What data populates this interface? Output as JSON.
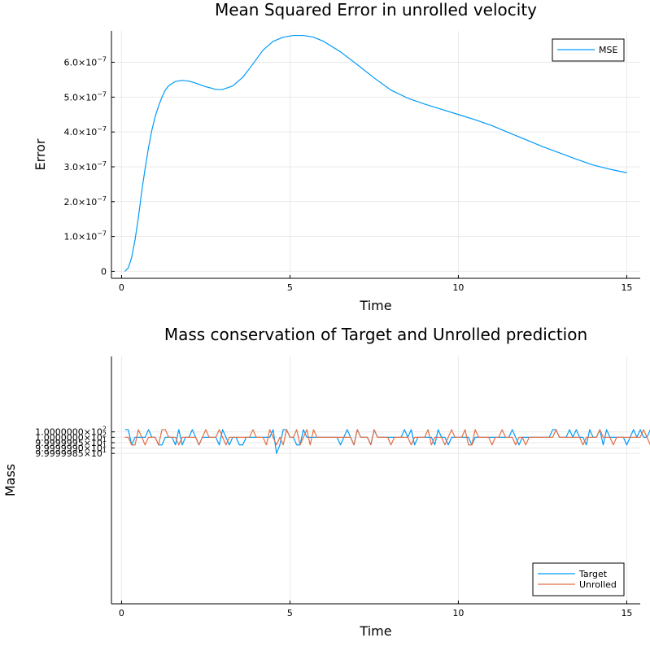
{
  "chart_data": [
    {
      "type": "line",
      "title": "Mean Squared Error in unrolled velocity",
      "xlabel": "Time",
      "ylabel": "Error",
      "xlim": [
        -0.3,
        15.4
      ],
      "ylim": [
        -2e-08,
        6.9e-07
      ],
      "xticks": [
        0,
        5,
        10,
        15
      ],
      "xtick_labels": [
        "0",
        "5",
        "10",
        "15"
      ],
      "yticks": [
        0,
        1e-07,
        2e-07,
        3e-07,
        4e-07,
        5e-07,
        6e-07
      ],
      "ytick_labels": [
        {
          "m": "0",
          "e": ""
        },
        {
          "m": "1.0×10",
          "e": "−7"
        },
        {
          "m": "2.0×10",
          "e": "−7"
        },
        {
          "m": "3.0×10",
          "e": "−7"
        },
        {
          "m": "4.0×10",
          "e": "−7"
        },
        {
          "m": "5.0×10",
          "e": "−7"
        },
        {
          "m": "6.0×10",
          "e": "−7"
        }
      ],
      "grid": true,
      "legend_position": "top-right",
      "series": [
        {
          "name": "MSE",
          "color": "#009AFA",
          "x": [
            0.1,
            0.2,
            0.3,
            0.4,
            0.5,
            0.6,
            0.7,
            0.8,
            0.9,
            1.0,
            1.1,
            1.2,
            1.3,
            1.4,
            1.6,
            1.8,
            2.0,
            2.2,
            2.5,
            2.8,
            3.0,
            3.3,
            3.6,
            3.9,
            4.2,
            4.5,
            4.8,
            5.1,
            5.4,
            5.7,
            6.0,
            6.5,
            7.0,
            7.5,
            8.0,
            8.5,
            9.0,
            9.5,
            10.0,
            10.5,
            11.0,
            11.5,
            12.0,
            12.5,
            13.0,
            13.5,
            14.0,
            14.5,
            15.0
          ],
          "y": [
            0,
            1e-08,
            4e-08,
            9e-08,
            1.55e-07,
            2.3e-07,
            2.95e-07,
            3.55e-07,
            4.05e-07,
            4.45e-07,
            4.75e-07,
            5e-07,
            5.2e-07,
            5.33e-07,
            5.45e-07,
            5.48e-07,
            5.46e-07,
            5.4e-07,
            5.3e-07,
            5.22e-07,
            5.22e-07,
            5.32e-07,
            5.57e-07,
            5.95e-07,
            6.35e-07,
            6.6e-07,
            6.72e-07,
            6.77e-07,
            6.77e-07,
            6.72e-07,
            6.6e-07,
            6.3e-07,
            5.93e-07,
            5.55e-07,
            5.2e-07,
            4.97e-07,
            4.8e-07,
            4.65e-07,
            4.5e-07,
            4.35e-07,
            4.18e-07,
            3.98e-07,
            3.78e-07,
            3.58e-07,
            3.4e-07,
            3.22e-07,
            3.05e-07,
            2.93e-07,
            2.83e-07
          ]
        }
      ]
    },
    {
      "type": "line",
      "title": "Mass conservation of Target and Unrolled prediction",
      "xlabel": "Time",
      "ylabel": "Mass",
      "xlim": [
        -0.3,
        15.4
      ],
      "ylim": [
        99.99998455,
        100.0000075
      ],
      "xticks": [
        0,
        5,
        10,
        15
      ],
      "xtick_labels": [
        "0",
        "5",
        "10",
        "15"
      ],
      "yticks": [
        99.9999985,
        99.999999,
        99.9999995,
        100.0,
        100.0000005
      ],
      "ytick_labels": [
        {
          "m": "9.9999985×10",
          "e": "1"
        },
        {
          "m": "9.9999990×10",
          "e": "1"
        },
        {
          "m": "9.9999995×10",
          "e": "1"
        },
        {
          "m": "1.0000000×10",
          "e": "2"
        },
        {
          "m": "1.0000000×10",
          "e": "2"
        }
      ],
      "grid": true,
      "legend_position": "bottom-right",
      "x_start": 0.1,
      "x_step": 0.1,
      "level_values": [
        99.99999929,
        100.0,
        100.00000071
      ],
      "series": [
        {
          "name": "Target",
          "color": "#009AFA",
          "levels": "2201111211001110201121011111021011001111111120022110021111111111012102111021111111121201111102110111111011111111111210111111111221112121102112021111101212112121110222112",
          "special": [
            {
              "x": 4.6,
              "y": 99.9999985
            }
          ]
        },
        {
          "name": "Unrolled",
          "color": "#E26F46",
          "levels": "1100210111022111011111012111210111111121110210102112012021111111111102111021111011111011112011101211120021111011211101101111111121111111011112111011111111210121111111111"
        }
      ]
    }
  ]
}
